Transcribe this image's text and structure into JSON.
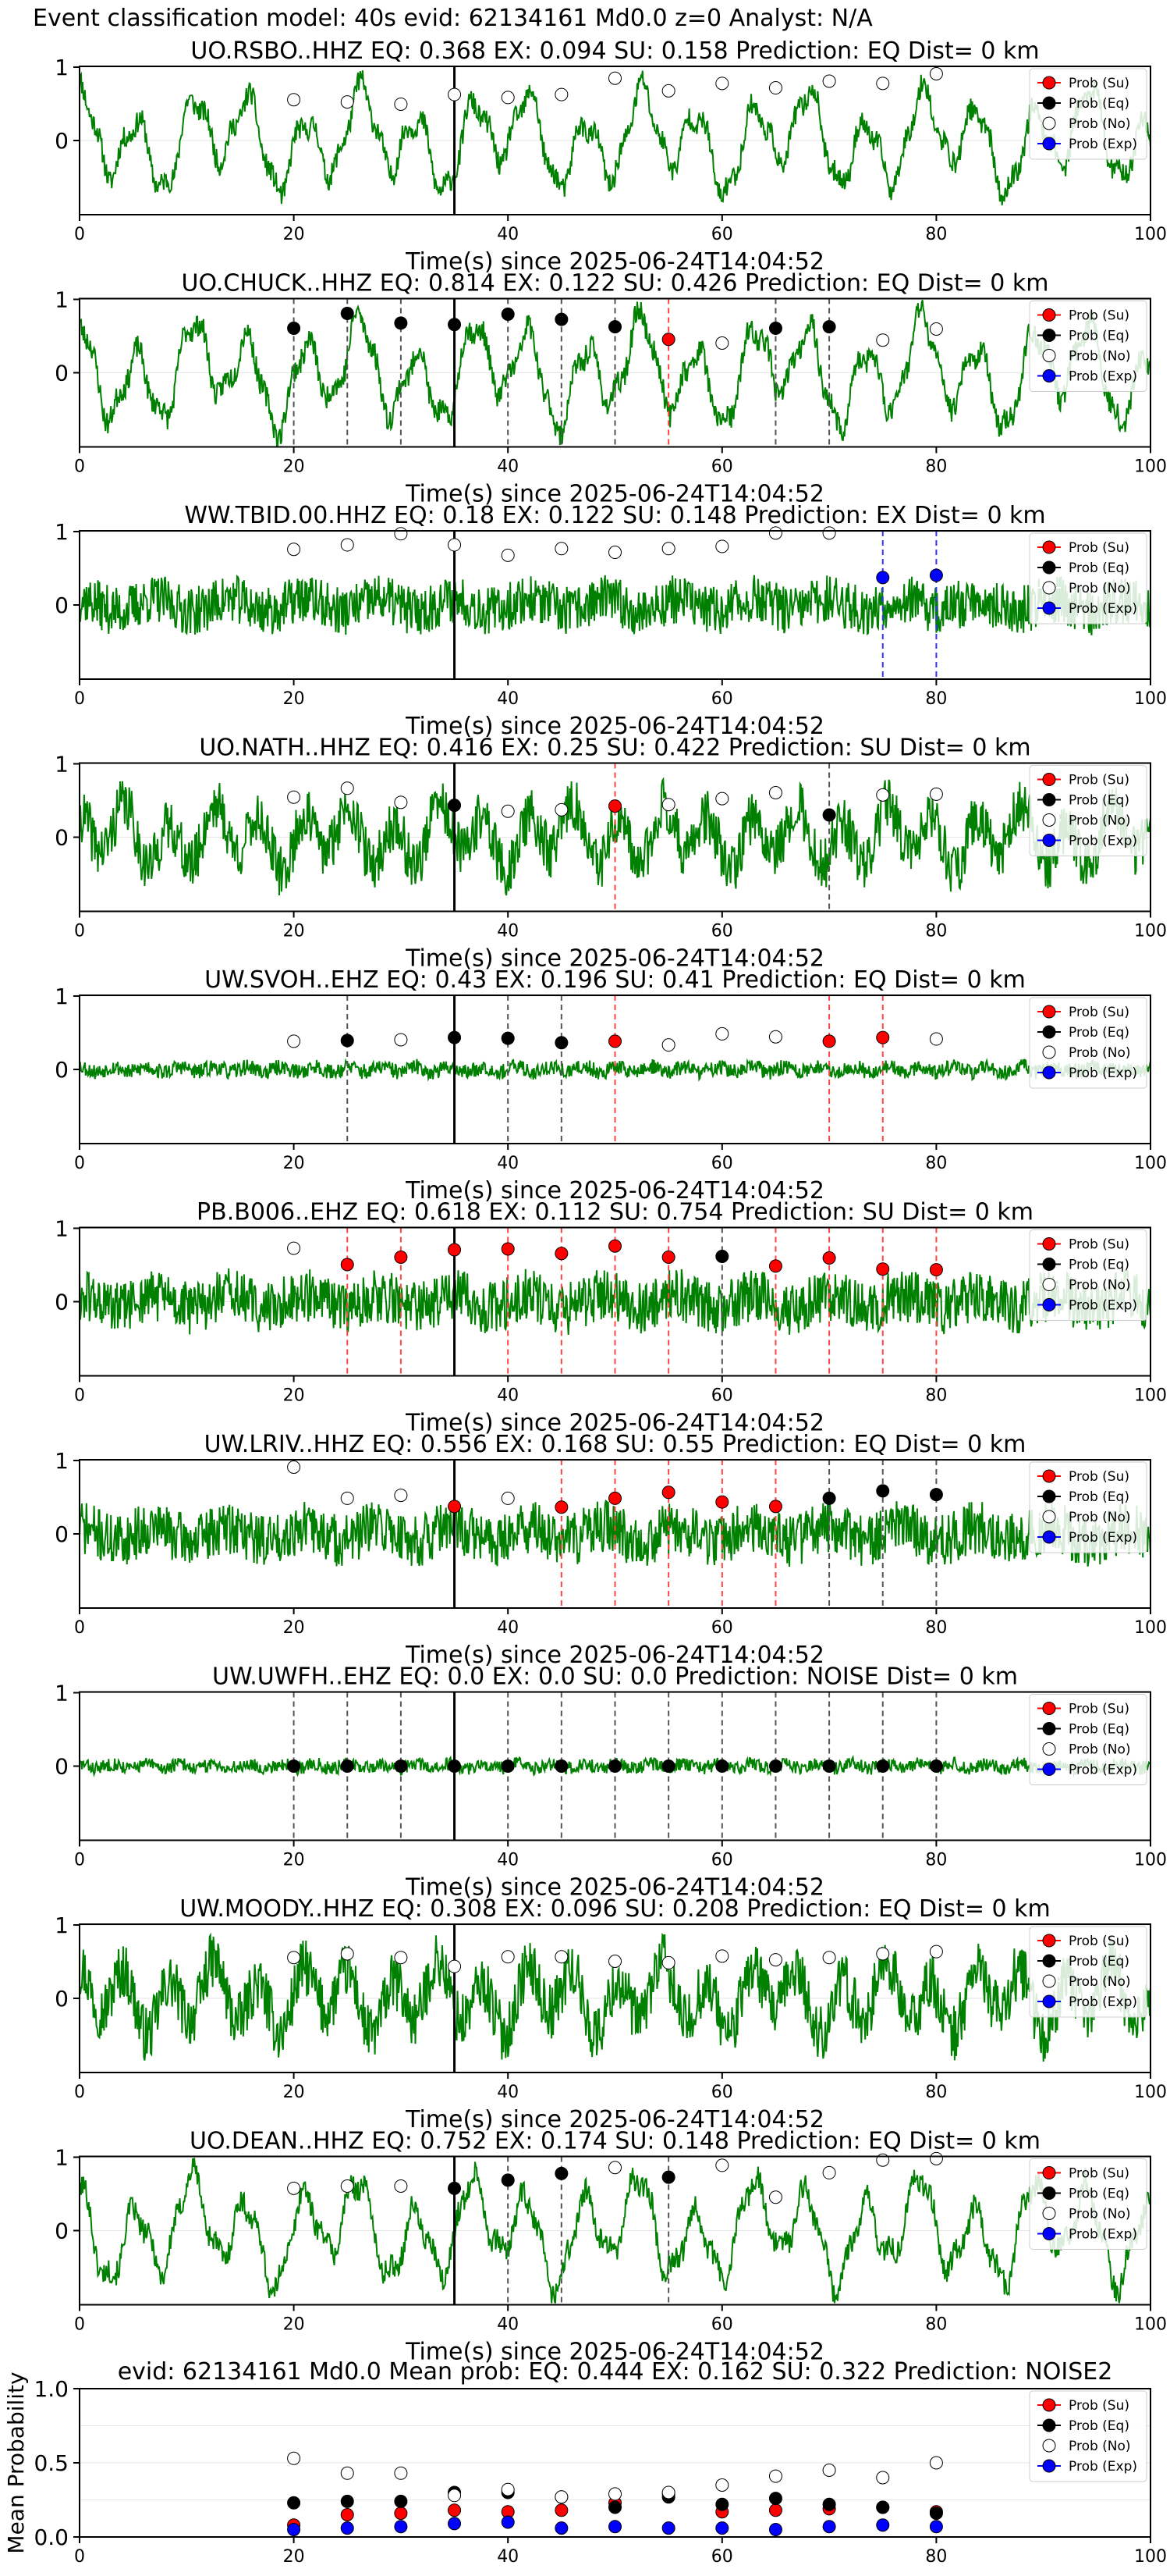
{
  "figure": {
    "title": "Event classification model: 40s evid: 62134161 Md0.0 z=0 Analyst: N/A",
    "time_axis_label": "Time(s) since 2025-06-24T14:04:52",
    "legend": [
      "Prob (Su)",
      "Prob (Eq)",
      "Prob (No)",
      "Prob (Exp)"
    ],
    "colors": {
      "trace": "#008000",
      "su": "#ff0000",
      "eq": "#000000",
      "no": "#ffffff",
      "exp": "#0000ff"
    },
    "marker_times": [
      20,
      25,
      30,
      35,
      40,
      45,
      50,
      55,
      60,
      65,
      70,
      75,
      80
    ],
    "reference_line_time": 35
  },
  "chart_data": [
    {
      "type": "line",
      "title": "UO.RSBO..HHZ   EQ: 0.368   EX: 0.094   SU: 0.158   Prediction: EQ    Dist= 0 km",
      "xlabel": "Time(s) since 2025-06-24T14:04:52",
      "xlim": [
        0,
        100
      ],
      "x_ticks": [
        "0",
        "20",
        "40",
        "60",
        "80",
        "100"
      ],
      "y_ticks": [
        "1",
        "0"
      ],
      "classes": [
        "no",
        "no",
        "no",
        "no",
        "no",
        "no",
        "no",
        "no",
        "no",
        "no",
        "no",
        "no",
        "no"
      ],
      "probs": [
        0.55,
        0.52,
        0.49,
        0.62,
        0.58,
        0.62,
        0.84,
        0.67,
        0.77,
        0.71,
        0.8,
        0.77,
        0.9
      ],
      "trace_style": "lowfreq",
      "seed": 11,
      "amp": 0.85
    },
    {
      "type": "line",
      "title": "UO.CHUCK..HHZ   EQ: 0.814   EX: 0.122   SU: 0.426   Prediction: EQ    Dist= 0 km",
      "xlabel": "Time(s) since 2025-06-24T14:04:52",
      "xlim": [
        0,
        100
      ],
      "x_ticks": [
        "0",
        "20",
        "40",
        "60",
        "80",
        "100"
      ],
      "y_ticks": [
        "1",
        "0"
      ],
      "classes": [
        "eq",
        "eq",
        "eq",
        "eq",
        "eq",
        "eq",
        "eq",
        "su",
        "no",
        "eq",
        "eq",
        "no",
        "no"
      ],
      "probs": [
        0.6,
        0.8,
        0.67,
        0.65,
        0.79,
        0.72,
        0.62,
        0.45,
        0.4,
        0.6,
        0.62,
        0.44,
        0.59
      ],
      "trace_style": "lowfreq",
      "seed": 23,
      "amp": 0.9
    },
    {
      "type": "line",
      "title": "WW.TBID.00.HHZ   EQ: 0.18   EX: 0.122   SU: 0.148   Prediction: EX    Dist= 0 km",
      "xlabel": "Time(s) since 2025-06-24T14:04:52",
      "xlim": [
        0,
        100
      ],
      "x_ticks": [
        "0",
        "20",
        "40",
        "60",
        "80",
        "100"
      ],
      "y_ticks": [
        "1",
        "0"
      ],
      "classes": [
        "no",
        "no",
        "no",
        "no",
        "no",
        "no",
        "no",
        "no",
        "no",
        "no",
        "no",
        "exp",
        "exp"
      ],
      "probs": [
        0.75,
        0.81,
        0.96,
        0.81,
        0.67,
        0.76,
        0.71,
        0.76,
        0.79,
        0.97,
        0.97,
        0.37,
        0.4
      ],
      "trace_style": "noise",
      "seed": 37,
      "amp": 0.55
    },
    {
      "type": "line",
      "title": "UO.NATH..HHZ   EQ: 0.416   EX: 0.25   SU: 0.422   Prediction: SU    Dist= 0 km",
      "xlabel": "Time(s) since 2025-06-24T14:04:52",
      "xlim": [
        0,
        100
      ],
      "x_ticks": [
        "0",
        "20",
        "40",
        "60",
        "80",
        "100"
      ],
      "y_ticks": [
        "1",
        "0"
      ],
      "classes": [
        "no",
        "no",
        "no",
        "eq",
        "no",
        "no",
        "su",
        "no",
        "no",
        "no",
        "eq",
        "no",
        "no"
      ],
      "probs": [
        0.54,
        0.66,
        0.47,
        0.43,
        0.35,
        0.37,
        0.42,
        0.44,
        0.52,
        0.6,
        0.3,
        0.57,
        0.58
      ],
      "trace_style": "mixed",
      "seed": 41,
      "amp": 0.8
    },
    {
      "type": "line",
      "title": "UW.SVOH..EHZ   EQ: 0.43   EX: 0.196   SU: 0.41   Prediction: EQ    Dist= 0 km",
      "xlabel": "Time(s) since 2025-06-24T14:04:52",
      "xlim": [
        0,
        100
      ],
      "x_ticks": [
        "0",
        "20",
        "40",
        "60",
        "80",
        "100"
      ],
      "y_ticks": [
        "1",
        "0"
      ],
      "classes": [
        "no",
        "eq",
        "no",
        "eq",
        "eq",
        "eq",
        "su",
        "no",
        "no",
        "no",
        "su",
        "su",
        "no"
      ],
      "probs": [
        0.38,
        0.39,
        0.4,
        0.43,
        0.42,
        0.36,
        0.38,
        0.33,
        0.48,
        0.44,
        0.38,
        0.43,
        0.41
      ],
      "trace_style": "quiet",
      "seed": 53,
      "amp": 0.35
    },
    {
      "type": "line",
      "title": "PB.B006..EHZ   EQ: 0.618   EX: 0.112   SU: 0.754   Prediction: SU    Dist= 0 km",
      "xlabel": "Time(s) since 2025-06-24T14:04:52",
      "xlim": [
        0,
        100
      ],
      "x_ticks": [
        "0",
        "20",
        "40",
        "60",
        "80",
        "100"
      ],
      "y_ticks": [
        "1",
        "0"
      ],
      "classes": [
        "no",
        "su",
        "su",
        "su",
        "su",
        "su",
        "su",
        "su",
        "eq",
        "su",
        "su",
        "su",
        "su"
      ],
      "probs": [
        0.72,
        0.5,
        0.6,
        0.7,
        0.71,
        0.65,
        0.75,
        0.6,
        0.61,
        0.48,
        0.59,
        0.44,
        0.43
      ],
      "trace_style": "noise",
      "seed": 61,
      "amp": 0.6
    },
    {
      "type": "line",
      "title": "UW.LRIV..HHZ   EQ: 0.556   EX: 0.168   SU: 0.55   Prediction: EQ    Dist= 0 km",
      "xlabel": "Time(s) since 2025-06-24T14:04:52",
      "xlim": [
        0,
        100
      ],
      "x_ticks": [
        "0",
        "20",
        "40",
        "60",
        "80",
        "100"
      ],
      "y_ticks": [
        "1",
        "0"
      ],
      "classes": [
        "no",
        "no",
        "no",
        "su",
        "no",
        "su",
        "su",
        "su",
        "su",
        "su",
        "eq",
        "eq",
        "eq"
      ],
      "probs": [
        0.9,
        0.48,
        0.52,
        0.37,
        0.48,
        0.36,
        0.48,
        0.56,
        0.43,
        0.37,
        0.48,
        0.58,
        0.53
      ],
      "trace_style": "noise",
      "seed": 71,
      "amp": 0.6
    },
    {
      "type": "line",
      "title": "UW.UWFH..EHZ   EQ: 0.0   EX: 0.0   SU: 0.0   Prediction: NOISE    Dist= 0 km",
      "xlabel": "Time(s) since 2025-06-24T14:04:52",
      "xlim": [
        0,
        100
      ],
      "x_ticks": [
        "0",
        "20",
        "40",
        "60",
        "80",
        "100"
      ],
      "y_ticks": [
        "1",
        "0"
      ],
      "classes": [
        "eq",
        "eq",
        "eq",
        "eq",
        "eq",
        "eq",
        "eq",
        "eq",
        "eq",
        "eq",
        "eq",
        "eq",
        "eq"
      ],
      "probs": [
        0,
        0,
        0,
        0,
        0,
        0,
        0,
        0,
        0,
        0,
        0,
        0,
        0
      ],
      "trace_style": "quiet",
      "seed": 83,
      "amp": 0.3
    },
    {
      "type": "line",
      "title": "UW.MOODY..HHZ   EQ: 0.308   EX: 0.096   SU: 0.208   Prediction: EQ    Dist= 0 km",
      "xlabel": "Time(s) since 2025-06-24T14:04:52",
      "xlim": [
        0,
        100
      ],
      "x_ticks": [
        "0",
        "20",
        "40",
        "60",
        "80",
        "100"
      ],
      "y_ticks": [
        "1",
        "0"
      ],
      "classes": [
        "no",
        "no",
        "no",
        "no",
        "no",
        "no",
        "no",
        "no",
        "no",
        "no",
        "no",
        "no",
        "no"
      ],
      "probs": [
        0.55,
        0.6,
        0.55,
        0.43,
        0.56,
        0.56,
        0.5,
        0.48,
        0.57,
        0.52,
        0.55,
        0.6,
        0.63
      ],
      "trace_style": "mixed",
      "seed": 97,
      "amp": 0.85
    },
    {
      "type": "line",
      "title": "UO.DEAN..HHZ   EQ: 0.752   EX: 0.174   SU: 0.148   Prediction: EQ    Dist= 0 km",
      "xlabel": "Time(s) since 2025-06-24T14:04:52",
      "xlim": [
        0,
        100
      ],
      "x_ticks": [
        "0",
        "20",
        "40",
        "60",
        "80",
        "100"
      ],
      "y_ticks": [
        "1",
        "0"
      ],
      "classes": [
        "no",
        "no",
        "no",
        "eq",
        "eq",
        "eq",
        "no",
        "eq",
        "no",
        "no",
        "no",
        "no",
        "no"
      ],
      "probs": [
        0.57,
        0.6,
        0.6,
        0.57,
        0.68,
        0.77,
        0.85,
        0.72,
        0.88,
        0.45,
        0.78,
        0.95,
        0.97
      ],
      "trace_style": "lowfreq",
      "seed": 101,
      "amp": 0.9
    },
    {
      "type": "scatter",
      "title": "evid: 62134161  Md0.0  Mean prob:   EQ: 0.444  EX: 0.162  SU: 0.322   Prediction: NOISE2",
      "ylabel": "Mean Probability",
      "xlim": [
        0,
        100
      ],
      "ylim": [
        0,
        1
      ],
      "x_ticks": [
        "0",
        "20",
        "40",
        "60",
        "80",
        "100"
      ],
      "y_ticks": [
        "0.0",
        "0.5",
        "1.0"
      ],
      "x": [
        20,
        25,
        30,
        35,
        40,
        45,
        50,
        55,
        60,
        65,
        70,
        75,
        80
      ],
      "series": [
        {
          "name": "Prob (Su)",
          "color": "#ff0000",
          "values": [
            0.08,
            0.15,
            0.16,
            0.18,
            0.17,
            0.18,
            0.23,
            0.29,
            0.17,
            0.18,
            0.19,
            0.2,
            0.17
          ]
        },
        {
          "name": "Prob (Eq)",
          "color": "#000000",
          "values": [
            0.23,
            0.24,
            0.24,
            0.3,
            0.3,
            0.27,
            0.2,
            0.27,
            0.22,
            0.26,
            0.22,
            0.2,
            0.16
          ]
        },
        {
          "name": "Prob (No)",
          "color": "#ffffff",
          "values": [
            0.53,
            0.43,
            0.43,
            0.28,
            0.32,
            0.27,
            0.29,
            0.3,
            0.35,
            0.41,
            0.45,
            0.4,
            0.5
          ]
        },
        {
          "name": "Prob (Exp)",
          "color": "#0000ff",
          "values": [
            0.05,
            0.06,
            0.07,
            0.09,
            0.1,
            0.06,
            0.07,
            0.06,
            0.06,
            0.05,
            0.07,
            0.08,
            0.07
          ]
        }
      ]
    }
  ]
}
